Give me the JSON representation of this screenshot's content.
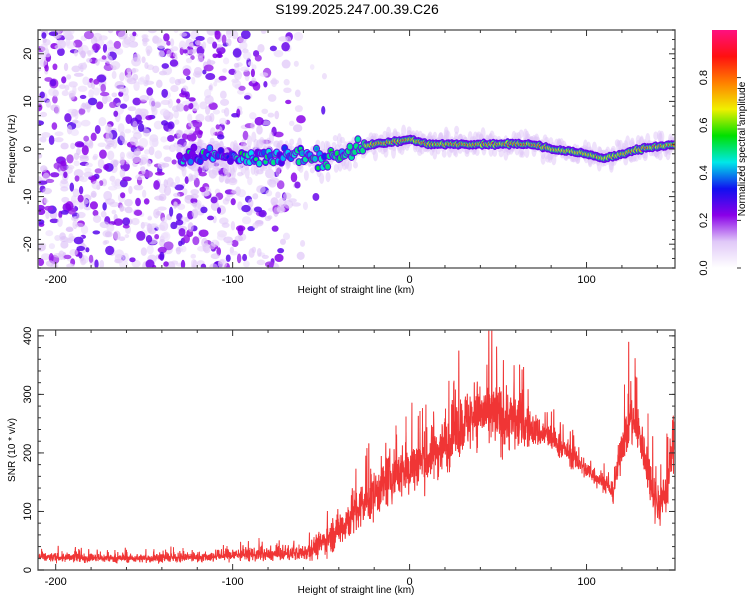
{
  "title": "S199.2025.247.00.39.C26",
  "chart_data": [
    {
      "type": "heatmap",
      "name": "spectrogram",
      "title": "S199.2025.247.00.39.C26",
      "xlabel": "Height of straight line (km)",
      "ylabel": "Frequency (Hz)",
      "xlim": [
        -210,
        150
      ],
      "ylim": [
        -25,
        25
      ],
      "xticks": [
        -200,
        -100,
        0,
        100
      ],
      "yticks": [
        -20,
        -10,
        0,
        10,
        20
      ],
      "xtick_labels": [
        "-200",
        "-100",
        "0",
        "100"
      ],
      "ytick_labels": [
        "-20",
        "-10",
        "0",
        "10",
        "20"
      ],
      "colorbar": {
        "label": "Normalized spectral amplitude",
        "range": [
          0,
          1
        ],
        "ticks": [
          0.0,
          0.2,
          0.4,
          0.6,
          0.8
        ],
        "tick_labels": [
          "0.0",
          "0.2",
          "0.4",
          "0.6",
          "0.8"
        ],
        "colors": [
          "#ffffff",
          "#e0c8f8",
          "#8a00e8",
          "#1010f0",
          "#00e8e8",
          "#00e000",
          "#f0f000",
          "#ff8000",
          "#ff1010",
          "#ff1080"
        ]
      },
      "signal_ridge": {
        "x": [
          -130,
          -110,
          -90,
          -70,
          -50,
          -30,
          -20,
          -10,
          0,
          10,
          30,
          50,
          70,
          80,
          90,
          100,
          110,
          120,
          130,
          140,
          150
        ],
        "freq": [
          -2,
          -1,
          -2,
          -1,
          -2,
          0,
          1,
          1.5,
          2,
          1,
          1,
          1,
          1,
          0,
          -0.5,
          -1,
          -2,
          -1,
          0,
          0.5,
          1
        ],
        "amplitude": [
          0.25,
          0.3,
          0.3,
          0.35,
          0.4,
          0.6,
          0.8,
          0.9,
          0.85,
          0.85,
          0.85,
          0.9,
          0.95,
          0.8,
          0.7,
          0.8,
          0.9,
          0.8,
          0.8,
          0.9,
          0.85
        ]
      },
      "noise_region": {
        "x_range": [
          -210,
          -60
        ],
        "amplitude_range": [
          0.02,
          0.25
        ]
      }
    },
    {
      "type": "line",
      "name": "snr",
      "xlabel": "Height of straight line (km)",
      "ylabel": "SNR (10 * v/v)",
      "xlim": [
        -210,
        150
      ],
      "ylim": [
        0,
        410
      ],
      "xticks": [
        -200,
        -100,
        0,
        100
      ],
      "yticks": [
        0,
        100,
        200,
        300,
        400
      ],
      "xtick_labels": [
        "-200",
        "-100",
        "0",
        "100"
      ],
      "ytick_labels": [
        "0",
        "100",
        "200",
        "300",
        "400"
      ],
      "color": "#f03030",
      "series": [
        {
          "name": "SNR",
          "x": [
            -210,
            -190,
            -170,
            -150,
            -130,
            -110,
            -100,
            -90,
            -80,
            -70,
            -60,
            -50,
            -40,
            -30,
            -20,
            -10,
            0,
            10,
            20,
            30,
            40,
            50,
            60,
            70,
            80,
            90,
            100,
            110,
            115,
            120,
            125,
            130,
            140,
            145,
            150
          ],
          "mean": [
            22,
            21,
            20,
            20,
            21,
            23,
            26,
            27,
            26,
            27,
            30,
            45,
            70,
            100,
            130,
            160,
            175,
            190,
            215,
            250,
            270,
            260,
            255,
            240,
            225,
            200,
            170,
            150,
            130,
            215,
            260,
            230,
            110,
            130,
            240
          ],
          "spread": [
            12,
            12,
            11,
            11,
            12,
            14,
            18,
            18,
            16,
            17,
            22,
            35,
            50,
            60,
            65,
            70,
            70,
            70,
            75,
            80,
            85,
            90,
            80,
            45,
            35,
            30,
            28,
            25,
            25,
            55,
            70,
            60,
            60,
            60,
            80
          ],
          "peak_max": 410
        }
      ]
    }
  ]
}
